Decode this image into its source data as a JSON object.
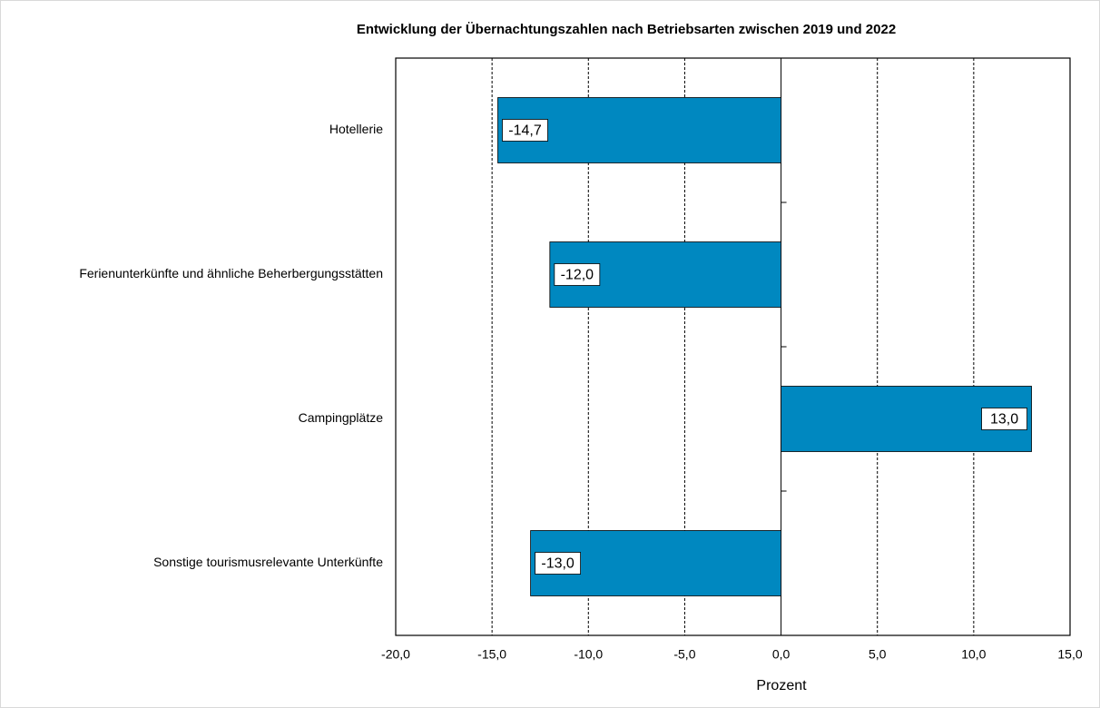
{
  "chart_data": {
    "type": "barh",
    "title": "Entwicklung der Übernachtungszahlen nach Betriebsarten zwischen 2019 und 2022",
    "categories": [
      "Hotellerie",
      "Ferienunterkünfte und ähnliche Beherbergungsstätten",
      "Campingplätze",
      "Sonstige tourismusrelevante Unterkünfte"
    ],
    "values": [
      -14.7,
      -12.0,
      13.0,
      -13.0
    ],
    "value_labels": [
      "-14,7",
      "-12,0",
      "13,0",
      "-13,0"
    ],
    "color": "#0088c0",
    "xlabel": "Prozent",
    "xlim": [
      -20,
      15
    ],
    "xticks": [
      {
        "value": -20,
        "label": "-20,0"
      },
      {
        "value": -15,
        "label": "-15,0"
      },
      {
        "value": -10,
        "label": "-10,0"
      },
      {
        "value": -5,
        "label": "-5,0"
      },
      {
        "value": 0,
        "label": "0,0"
      },
      {
        "value": 5,
        "label": "5,0"
      },
      {
        "value": 10,
        "label": "10,0"
      },
      {
        "value": 15,
        "label": "15,0"
      }
    ],
    "grid": true
  }
}
